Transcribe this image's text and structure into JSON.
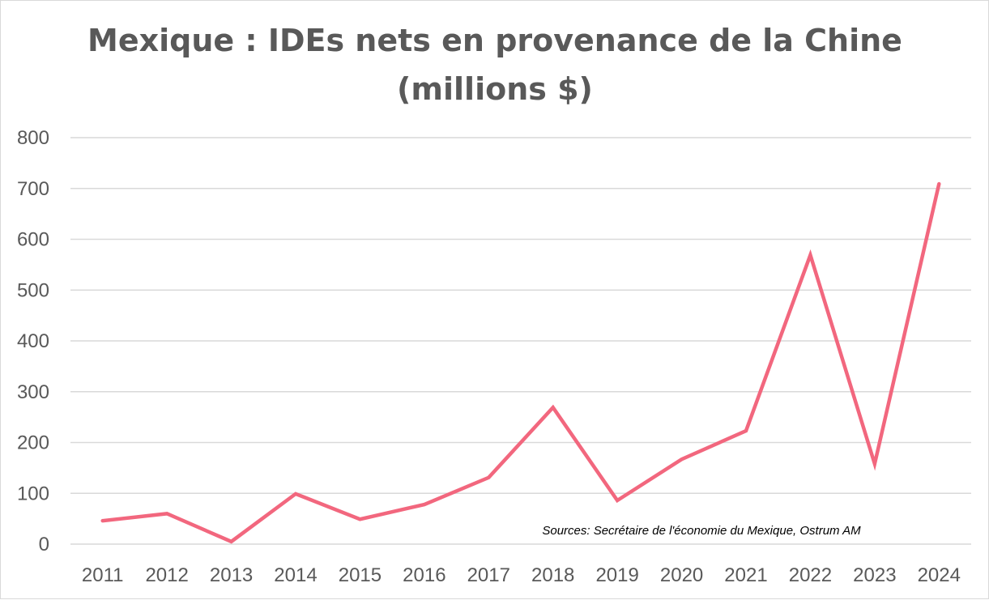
{
  "chart_data": {
    "type": "line",
    "title": [
      "Mexique : IDEs nets en provenance de la Chine",
      "(millions $)"
    ],
    "xlabel": "",
    "ylabel": "",
    "categories": [
      "2011",
      "2012",
      "2013",
      "2014",
      "2015",
      "2016",
      "2017",
      "2018",
      "2019",
      "2020",
      "2021",
      "2022",
      "2023",
      "2024"
    ],
    "values": [
      46,
      60,
      5,
      99,
      49,
      78,
      131,
      269,
      86,
      167,
      223,
      569,
      158,
      709
    ],
    "ylim": [
      0,
      800
    ],
    "yticks": [
      0,
      100,
      200,
      300,
      400,
      500,
      600,
      700,
      800
    ],
    "grid": true,
    "line_color": "#f2677e",
    "annotation": "Sources: Secrétaire de l'économie du Mexique, Ostrum AM"
  }
}
